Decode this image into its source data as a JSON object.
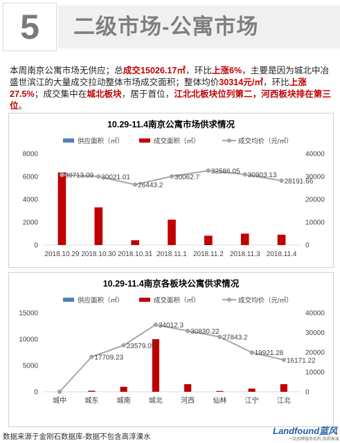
{
  "header": {
    "number": "5",
    "title": "二级市场-公寓市场"
  },
  "summary": {
    "p1": "本周南京公寓市场无供应；总",
    "hl1": "成交15026.17㎡",
    "p2": "，环比",
    "hl2": "上涨6%",
    "p3": "，主要是因为城北中冶盛世滨江的大量成交拉动整体市场成交面积；整体均价",
    "hl3": "30314元/㎡",
    "p4": "，环比",
    "hl4": "上涨27.5%",
    "p5": "；成交集中在",
    "hl5": "城北板块",
    "p6": "，居于首位，",
    "hl6": "江北北板块位列第二，河西板块排在第三位",
    "p7": "。"
  },
  "colors": {
    "supply": "#4f81bd",
    "deal": "#c00000",
    "price": "#a6a6a6",
    "axis": "#d9d9d9",
    "text": "#404040"
  },
  "chart_data": [
    {
      "type": "bar",
      "title": "10.29-11.4南京公寓市场供求情况",
      "legend": [
        "供应面积（㎡）",
        "成交面积（㎡）",
        "成交均价（元/㎡）"
      ],
      "legend_position": "top",
      "categories": [
        "2018.10.29",
        "2018.10.30",
        "2018.10.31",
        "2018.11.1",
        "2018.11.2",
        "2018.11.3",
        "2018.11.4"
      ],
      "series": [
        {
          "name": "供应面积（㎡）",
          "type": "bar",
          "axis": "left",
          "values": [
            0,
            0,
            0,
            0,
            0,
            0,
            0
          ]
        },
        {
          "name": "成交面积（㎡）",
          "type": "bar",
          "axis": "left",
          "values": [
            6350,
            3300,
            420,
            2220,
            820,
            1000,
            900
          ]
        },
        {
          "name": "成交均价（元/㎡）",
          "type": "line",
          "axis": "right",
          "values": [
            30713.09,
            30021.01,
            26443.2,
            30062.7,
            32586.05,
            30903.13,
            28191.66
          ],
          "labels": [
            "30713.09",
            "30021.01",
            "26443.2",
            "30062.7",
            "32586.05",
            "30903.13",
            "28191.66"
          ]
        }
      ],
      "ylim_left": [
        0,
        8000
      ],
      "yticks_left": [
        "0",
        "2000",
        "4000",
        "6000",
        "8000"
      ],
      "ylim_right": [
        0,
        40000
      ],
      "yticks_right": [
        "0",
        "10000",
        "20000",
        "30000",
        "40000"
      ],
      "grid": false
    },
    {
      "type": "bar",
      "title": "10.29-11.4南京各板块公寓供求情况",
      "legend": [
        "供应面积（㎡）",
        "成交面积（㎡）",
        "成交均价（元/㎡）"
      ],
      "legend_position": "top",
      "categories": [
        "城中",
        "城东",
        "城南",
        "城北",
        "河西",
        "仙林",
        "江宁",
        "江北"
      ],
      "series": [
        {
          "name": "供应面积（㎡）",
          "type": "bar",
          "axis": "left",
          "values": [
            0,
            0,
            0,
            0,
            0,
            0,
            0,
            0
          ]
        },
        {
          "name": "成交面积（㎡）",
          "type": "bar",
          "axis": "left",
          "values": [
            0,
            200,
            950,
            10000,
            1450,
            150,
            600,
            1450
          ]
        },
        {
          "name": "成交均价（元/㎡）",
          "type": "line",
          "axis": "right",
          "values": [
            0,
            17709.23,
            23579.05,
            34012.3,
            30830.22,
            27843.2,
            19921.28,
            16171.22
          ],
          "labels": [
            "",
            "17709.23",
            "23579.05",
            "34012.3",
            "30830.22",
            "27843.2",
            "19921.28",
            "16171.22"
          ]
        }
      ],
      "ylim_left": [
        0,
        15000
      ],
      "yticks_left": [
        "0",
        "5000",
        "10000",
        "15000"
      ],
      "ylim_right": [
        0,
        40000
      ],
      "yticks_right": [
        "0",
        "10000",
        "20000",
        "30000",
        "40000"
      ],
      "grid": false
    }
  ],
  "footer": {
    "note": "数据来源于金刚石数据库-数据不包含高淳溧水",
    "logo_main": "Landfound蓝风",
    "logo_sub": "一流品牌服务机构 品质高端"
  }
}
